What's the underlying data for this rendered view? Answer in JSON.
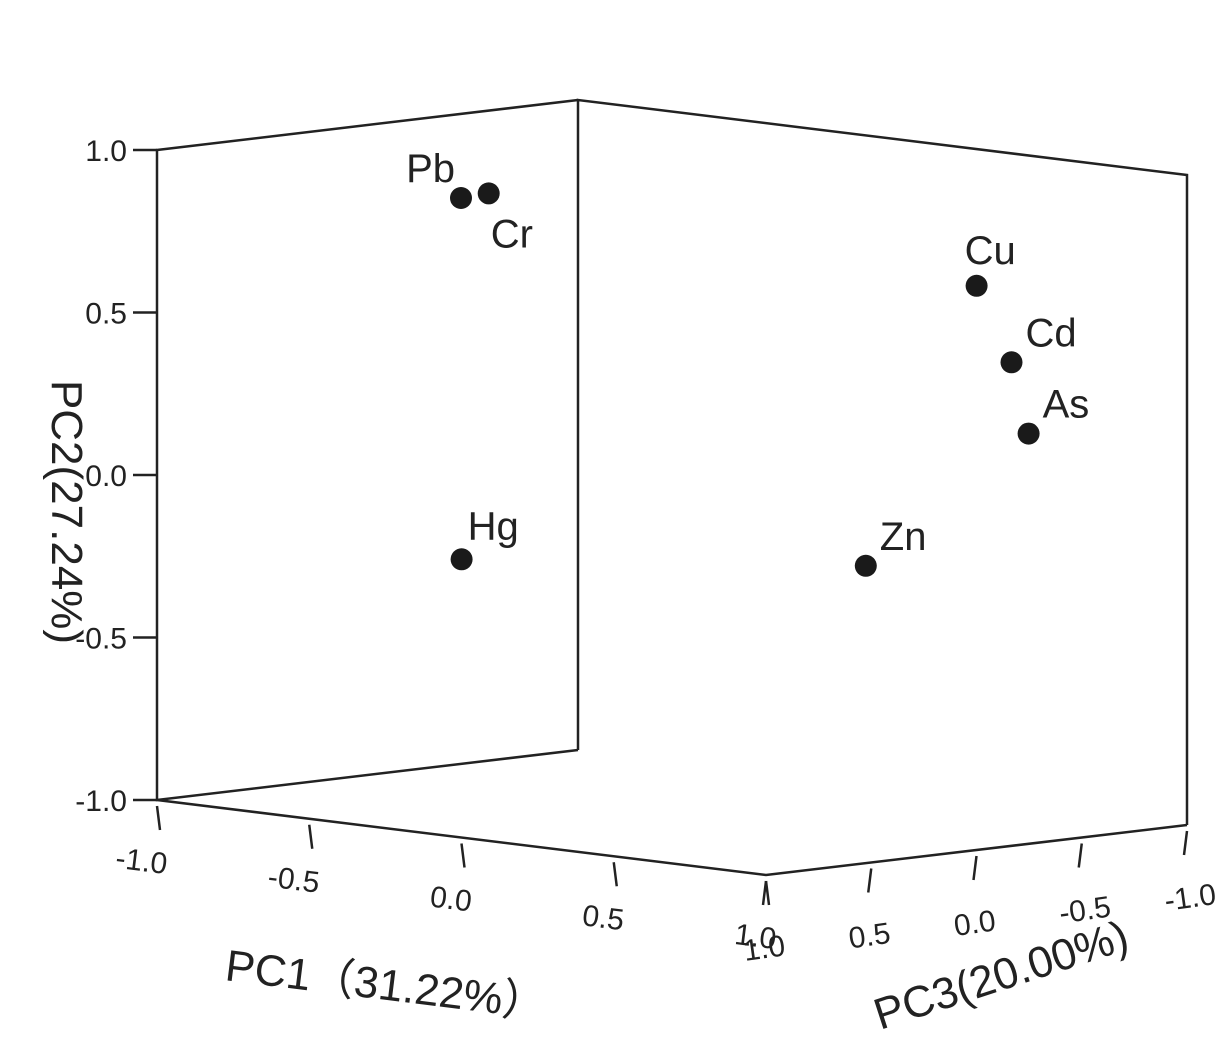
{
  "chart_data": {
    "type": "scatter",
    "projection": "3d",
    "title": "",
    "axes": {
      "x": {
        "label": "PC1（31.22%）",
        "range": [
          -1.0,
          1.0
        ],
        "ticks": [
          -1.0,
          -0.5,
          0.0,
          0.5,
          1.0
        ],
        "tick_labels": [
          "-1.0",
          "-0.5",
          "0.0",
          "0.5",
          "1.0"
        ]
      },
      "y": {
        "label": "PC2(27.24%)",
        "range": [
          -1.0,
          1.0
        ],
        "ticks": [
          -1.0,
          -0.5,
          0.0,
          0.5,
          1.0
        ],
        "tick_labels": [
          "-1.0",
          "-0.5",
          "0.0",
          "0.5",
          "1.0"
        ]
      },
      "z": {
        "label": "PC3(20.00%)",
        "range": [
          -1.0,
          1.0
        ],
        "ticks": [
          1.0,
          0.5,
          0.0,
          -0.5,
          -1.0
        ],
        "tick_labels": [
          "1.0",
          "0.5",
          "0.0",
          "-0.5",
          "-1.0"
        ]
      }
    },
    "grid": false,
    "point_color": "#1a1a1a",
    "points": [
      {
        "label": "Pb",
        "x": -0.52,
        "y": 0.85,
        "z": 0.25
      },
      {
        "label": "Cr",
        "x": -0.45,
        "y": 0.87,
        "z": 0.22
      },
      {
        "label": "Cu",
        "x": 0.62,
        "y": 0.65,
        "z": -0.55
      },
      {
        "label": "Cd",
        "x": 0.7,
        "y": 0.42,
        "z": -0.6
      },
      {
        "label": "As",
        "x": 0.77,
        "y": 0.21,
        "z": -0.58
      },
      {
        "label": "Zn",
        "x": 0.36,
        "y": -0.23,
        "z": -0.4
      },
      {
        "label": "Hg",
        "x": -0.38,
        "y": -0.23,
        "z": 0.45
      }
    ]
  }
}
